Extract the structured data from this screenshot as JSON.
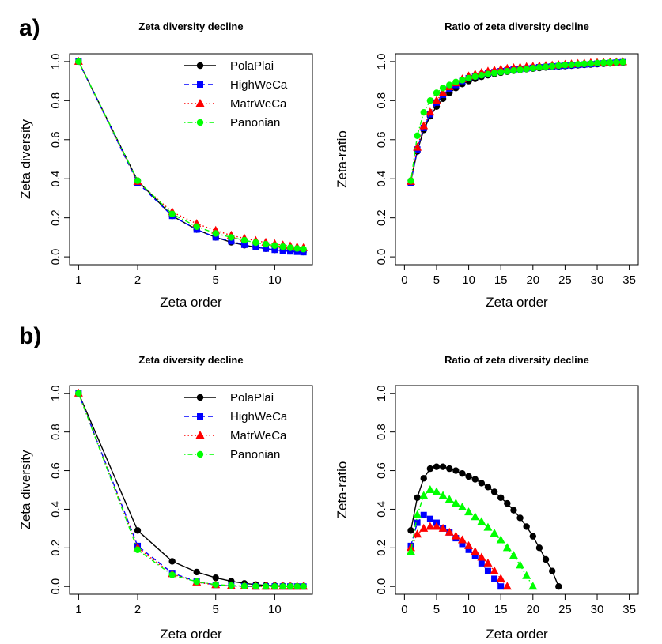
{
  "panels": [
    {
      "label": "a)"
    },
    {
      "label": "b)"
    }
  ],
  "chart_data": [
    {
      "type": "line",
      "panel": "a)",
      "title": "Zeta diversity decline",
      "xlabel": "Zeta order",
      "ylabel": "Zeta diversity",
      "xscale": "log",
      "xlim": [
        1,
        14
      ],
      "ylim": [
        0,
        1
      ],
      "xticks": [
        1,
        2,
        5,
        10
      ],
      "yticks": [
        0.0,
        0.2,
        0.4,
        0.6,
        0.8,
        1.0
      ],
      "xtick_labels": [
        "1",
        "2",
        "5",
        "10"
      ],
      "ytick_labels": [
        "0.0",
        "0.2",
        "0.4",
        "0.6",
        "0.8",
        "1.0"
      ],
      "legend": {
        "position": "top-right",
        "entries": [
          "PolaPlai",
          "HighWeCa",
          "MatrWeCa",
          "Panonian"
        ]
      },
      "x": [
        1,
        2,
        3,
        4,
        5,
        6,
        7,
        8,
        9,
        10,
        11,
        12,
        13,
        14
      ],
      "series": [
        {
          "name": "PolaPlai",
          "color": "#000000",
          "marker": "circle",
          "line": "solid",
          "values": [
            1.0,
            0.39,
            0.21,
            0.14,
            0.1,
            0.075,
            0.06,
            0.05,
            0.042,
            0.036,
            0.032,
            0.029,
            0.027,
            0.025
          ]
        },
        {
          "name": "HighWeCa",
          "color": "#0000ff",
          "marker": "square",
          "line": "dashed",
          "values": [
            1.0,
            0.38,
            0.21,
            0.14,
            0.1,
            0.08,
            0.062,
            0.05,
            0.042,
            0.036,
            0.032,
            0.028,
            0.026,
            0.024
          ]
        },
        {
          "name": "MatrWeCa",
          "color": "#ff0000",
          "marker": "triangle",
          "line": "dotted",
          "values": [
            1.0,
            0.385,
            0.23,
            0.17,
            0.135,
            0.11,
            0.095,
            0.083,
            0.074,
            0.066,
            0.06,
            0.055,
            0.05,
            0.046
          ]
        },
        {
          "name": "Panonian",
          "color": "#00ff00",
          "marker": "circle",
          "line": "dotdash",
          "values": [
            1.0,
            0.39,
            0.22,
            0.155,
            0.12,
            0.1,
            0.085,
            0.073,
            0.065,
            0.058,
            0.052,
            0.047,
            0.043,
            0.04
          ]
        }
      ]
    },
    {
      "type": "scatter",
      "panel": "a)",
      "title": "Ratio of zeta diversity decline",
      "xlabel": "Zeta order",
      "ylabel": "Zeta-ratio",
      "xlim": [
        0,
        35
      ],
      "ylim": [
        0,
        1
      ],
      "xticks": [
        0,
        5,
        10,
        15,
        20,
        25,
        30,
        35
      ],
      "yticks": [
        0.0,
        0.2,
        0.4,
        0.6,
        0.8,
        1.0
      ],
      "xtick_labels": [
        "0",
        "5",
        "10",
        "15",
        "20",
        "25",
        "30",
        "35"
      ],
      "ytick_labels": [
        "0.0",
        "0.2",
        "0.4",
        "0.6",
        "0.8",
        "1.0"
      ],
      "series": [
        {
          "name": "PolaPlai",
          "color": "#000000",
          "marker": "circle",
          "line": "solid",
          "x": [
            1,
            2,
            3,
            4,
            5,
            6,
            7,
            8,
            9,
            10,
            11,
            12,
            13,
            14,
            15,
            16,
            17,
            18,
            19,
            20,
            21,
            22,
            23,
            24,
            25,
            26,
            27,
            28,
            29,
            30,
            31,
            32,
            33,
            34
          ],
          "values": [
            0.39,
            0.54,
            0.65,
            0.72,
            0.77,
            0.81,
            0.84,
            0.865,
            0.885,
            0.9,
            0.912,
            0.922,
            0.93,
            0.937,
            0.943,
            0.948,
            0.953,
            0.957,
            0.961,
            0.964,
            0.967,
            0.97,
            0.972,
            0.975,
            0.977,
            0.979,
            0.981,
            0.983,
            0.985,
            0.987,
            0.989,
            0.991,
            0.993,
            0.995
          ]
        },
        {
          "name": "HighWeCa",
          "color": "#0000ff",
          "marker": "square",
          "line": "dashed",
          "x": [
            1,
            2,
            3,
            4,
            5,
            6,
            7,
            8,
            9,
            10,
            11,
            12,
            13,
            14,
            15,
            16,
            17,
            18,
            19,
            20,
            21,
            22,
            23,
            24,
            25,
            26,
            27,
            28,
            29,
            30,
            31,
            32,
            33,
            34
          ],
          "values": [
            0.38,
            0.55,
            0.66,
            0.73,
            0.79,
            0.83,
            0.86,
            0.88,
            0.9,
            0.915,
            0.925,
            0.933,
            0.94,
            0.946,
            0.951,
            0.955,
            0.959,
            0.962,
            0.965,
            0.968,
            0.971,
            0.973,
            0.975,
            0.977,
            0.979,
            0.981,
            0.983,
            0.985,
            0.987,
            0.989,
            0.991,
            0.993,
            0.995,
            0.997
          ]
        },
        {
          "name": "MatrWeCa",
          "color": "#ff0000",
          "marker": "triangle",
          "line": "dotted",
          "x": [
            1,
            2,
            3,
            4,
            5,
            6,
            7,
            8,
            9,
            10,
            11,
            12,
            13,
            14,
            15,
            16,
            17,
            18,
            19,
            20,
            21,
            22,
            23,
            24,
            25,
            26,
            27,
            28,
            29,
            30,
            31,
            32,
            33,
            34
          ],
          "values": [
            0.385,
            0.56,
            0.67,
            0.74,
            0.8,
            0.84,
            0.87,
            0.89,
            0.91,
            0.925,
            0.935,
            0.943,
            0.95,
            0.955,
            0.96,
            0.964,
            0.967,
            0.97,
            0.973,
            0.975,
            0.977,
            0.979,
            0.981,
            0.983,
            0.985,
            0.987,
            0.989,
            0.991,
            0.993,
            0.994,
            0.995,
            0.996,
            0.997,
            0.998
          ]
        },
        {
          "name": "Panonian",
          "color": "#00ff00",
          "marker": "circle",
          "line": "dotdash",
          "x": [
            1,
            2,
            3,
            4,
            5,
            6,
            7,
            8,
            9,
            10,
            11,
            12,
            13,
            14,
            15,
            16,
            17,
            18,
            19,
            20,
            21,
            22,
            23,
            24,
            25,
            26,
            27,
            28,
            29,
            30,
            31,
            32,
            33,
            34
          ],
          "values": [
            0.39,
            0.62,
            0.74,
            0.8,
            0.84,
            0.865,
            0.88,
            0.895,
            0.905,
            0.915,
            0.923,
            0.93,
            0.936,
            0.941,
            0.946,
            0.95,
            0.954,
            0.958,
            0.962,
            0.966,
            0.97,
            0.973,
            0.976,
            0.979,
            0.982,
            0.984,
            0.986,
            0.988,
            0.99,
            0.992,
            0.994,
            0.995,
            0.996,
            0.997
          ]
        }
      ]
    },
    {
      "type": "line",
      "panel": "b)",
      "title": "Zeta diversity decline",
      "xlabel": "Zeta order",
      "ylabel": "Zeta diversity",
      "xscale": "log",
      "xlim": [
        1,
        14
      ],
      "ylim": [
        0,
        1
      ],
      "xticks": [
        1,
        2,
        5,
        10
      ],
      "yticks": [
        0.0,
        0.2,
        0.4,
        0.6,
        0.8,
        1.0
      ],
      "xtick_labels": [
        "1",
        "2",
        "5",
        "10"
      ],
      "ytick_labels": [
        "0.0",
        "0.2",
        "0.4",
        "0.6",
        "0.8",
        "1.0"
      ],
      "legend": {
        "position": "top-right",
        "entries": [
          "PolaPlai",
          "HighWeCa",
          "MatrWeCa",
          "Panonian"
        ]
      },
      "x": [
        1,
        2,
        3,
        4,
        5,
        6,
        7,
        8,
        9,
        10,
        11,
        12,
        13,
        14
      ],
      "series": [
        {
          "name": "PolaPlai",
          "color": "#000000",
          "marker": "circle",
          "line": "solid",
          "values": [
            1.0,
            0.29,
            0.13,
            0.075,
            0.045,
            0.027,
            0.016,
            0.01,
            0.006,
            0.004,
            0.003,
            0.002,
            0.001,
            0.001
          ]
        },
        {
          "name": "HighWeCa",
          "color": "#0000ff",
          "marker": "square",
          "line": "dashed",
          "values": [
            1.0,
            0.21,
            0.07,
            0.025,
            0.008,
            0.003,
            0.001,
            0,
            0,
            0,
            0,
            0,
            0,
            0
          ]
        },
        {
          "name": "MatrWeCa",
          "color": "#ff0000",
          "marker": "triangle",
          "line": "dotted",
          "values": [
            1.0,
            0.2,
            0.065,
            0.022,
            0.008,
            0.003,
            0.001,
            0,
            0,
            0,
            0,
            0,
            0,
            0
          ]
        },
        {
          "name": "Panonian",
          "color": "#00ff00",
          "marker": "circle",
          "line": "dotdash",
          "values": [
            1.0,
            0.19,
            0.06,
            0.025,
            0.01,
            0.005,
            0.002,
            0.001,
            0,
            0,
            0,
            0,
            0,
            0
          ]
        }
      ]
    },
    {
      "type": "scatter",
      "panel": "b)",
      "title": "Ratio of zeta diversity decline",
      "xlabel": "Zeta order",
      "ylabel": "Zeta-ratio",
      "xlim": [
        0,
        35
      ],
      "ylim": [
        0,
        1
      ],
      "xticks": [
        0,
        5,
        10,
        15,
        20,
        25,
        30,
        35
      ],
      "yticks": [
        0.0,
        0.2,
        0.4,
        0.6,
        0.8,
        1.0
      ],
      "xtick_labels": [
        "0",
        "5",
        "10",
        "15",
        "20",
        "25",
        "30",
        "35"
      ],
      "ytick_labels": [
        "0.0",
        "0.2",
        "0.4",
        "0.6",
        "0.8",
        "1.0"
      ],
      "series": [
        {
          "name": "PolaPlai",
          "color": "#000000",
          "marker": "circle",
          "line": "solid",
          "x": [
            1,
            2,
            3,
            4,
            5,
            6,
            7,
            8,
            9,
            10,
            11,
            12,
            13,
            14,
            15,
            16,
            17,
            18,
            19,
            20,
            21,
            22,
            23,
            24
          ],
          "values": [
            0.29,
            0.46,
            0.56,
            0.61,
            0.62,
            0.62,
            0.61,
            0.6,
            0.585,
            0.57,
            0.555,
            0.535,
            0.515,
            0.49,
            0.46,
            0.43,
            0.395,
            0.355,
            0.31,
            0.26,
            0.2,
            0.14,
            0.08,
            0
          ]
        },
        {
          "name": "HighWeCa",
          "color": "#0000ff",
          "marker": "square",
          "line": "dashed",
          "x": [
            1,
            2,
            3,
            4,
            5,
            6,
            7,
            8,
            9,
            10,
            11,
            12,
            13,
            14,
            15
          ],
          "values": [
            0.21,
            0.33,
            0.37,
            0.35,
            0.33,
            0.3,
            0.28,
            0.25,
            0.22,
            0.19,
            0.16,
            0.12,
            0.08,
            0.04,
            0
          ]
        },
        {
          "name": "MatrWeCa",
          "color": "#ff0000",
          "marker": "triangle",
          "line": "dotted",
          "x": [
            1,
            2,
            3,
            4,
            5,
            6,
            7,
            8,
            9,
            10,
            11,
            12,
            13,
            14,
            15,
            16
          ],
          "values": [
            0.2,
            0.27,
            0.3,
            0.31,
            0.31,
            0.3,
            0.28,
            0.26,
            0.24,
            0.21,
            0.18,
            0.15,
            0.12,
            0.08,
            0.04,
            0
          ]
        },
        {
          "name": "Panonian",
          "color": "#00ff00",
          "marker": "triangle",
          "line": "dotdash",
          "x": [
            1,
            2,
            3,
            4,
            5,
            6,
            7,
            8,
            9,
            10,
            11,
            12,
            13,
            14,
            15,
            16,
            17,
            18,
            19,
            20
          ],
          "values": [
            0.18,
            0.37,
            0.47,
            0.5,
            0.49,
            0.47,
            0.45,
            0.43,
            0.41,
            0.385,
            0.36,
            0.335,
            0.305,
            0.275,
            0.24,
            0.2,
            0.16,
            0.11,
            0.055,
            0
          ]
        }
      ]
    }
  ]
}
